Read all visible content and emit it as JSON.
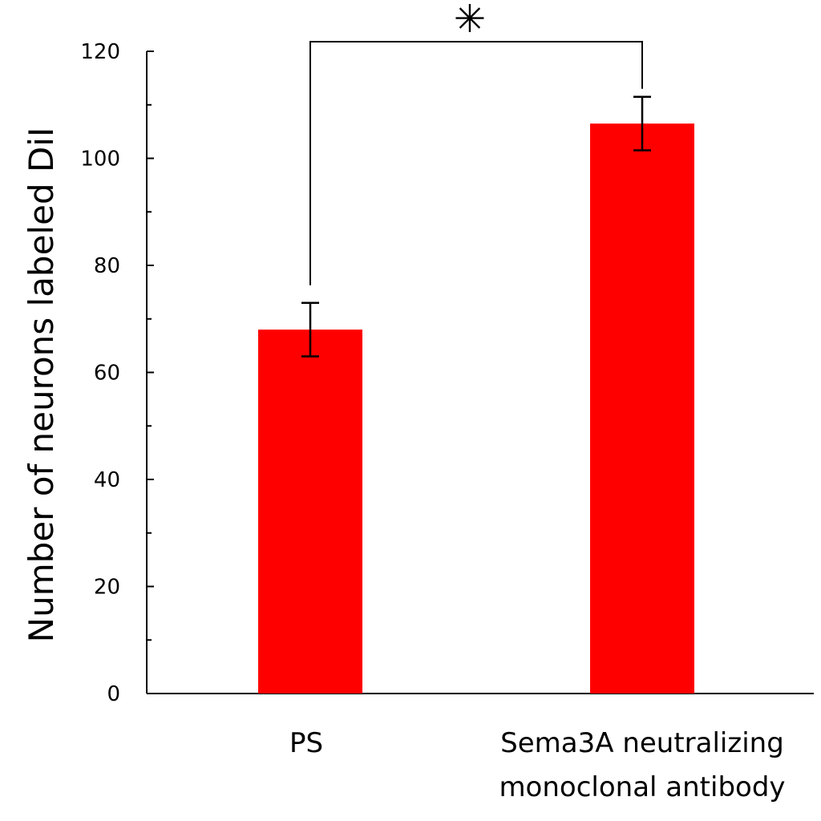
{
  "chart_data": {
    "type": "bar",
    "categories": [
      "PS",
      "Sema3A neutralizing monoclonal antibody"
    ],
    "category_lines": [
      [
        "PS"
      ],
      [
        "Sema3A neutralizing",
        "monoclonal antibody"
      ]
    ],
    "values": [
      68,
      106.5
    ],
    "errors": [
      5,
      5
    ],
    "ylabel": "Number of neurons labeled DiI",
    "xlabel": "",
    "ylim": [
      0,
      120
    ],
    "yticks": [
      0,
      20,
      40,
      60,
      80,
      100,
      120
    ],
    "grid": false,
    "bar_color": "#ff0000",
    "significance": {
      "marker": "✳",
      "between": [
        0,
        1
      ]
    }
  }
}
